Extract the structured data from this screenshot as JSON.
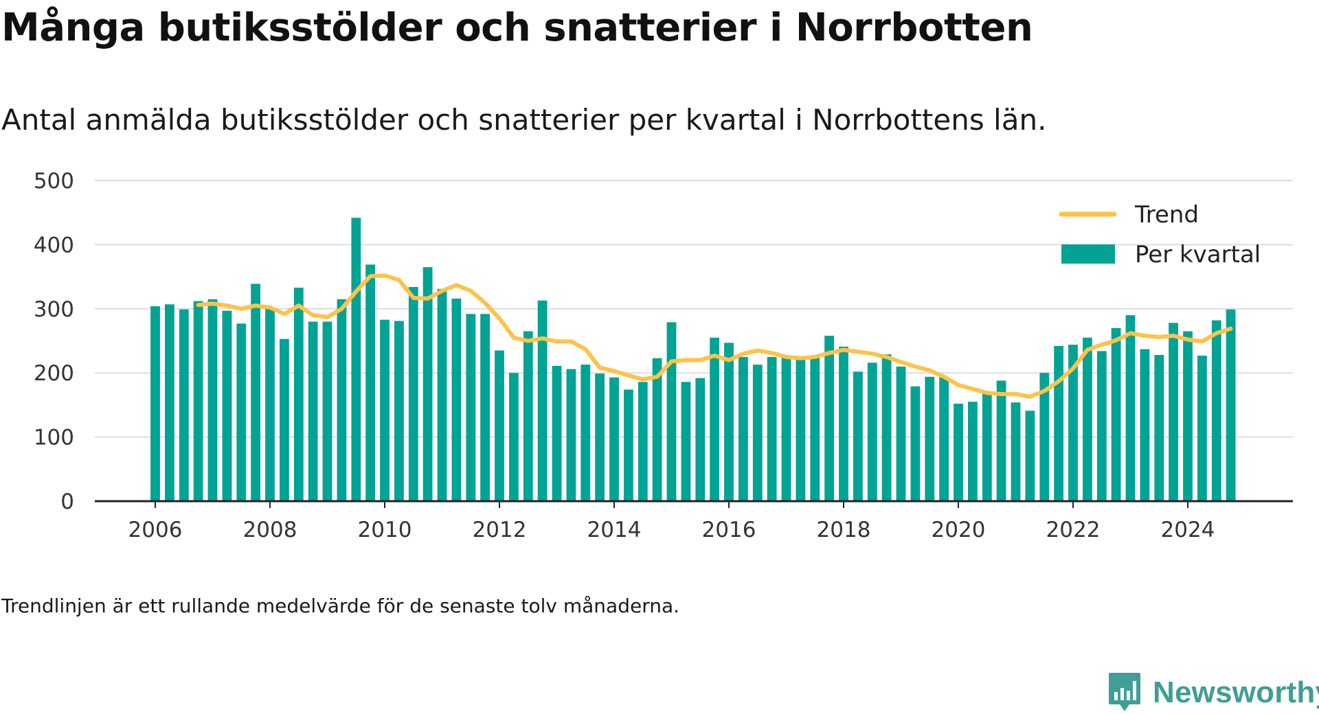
{
  "title": "Många butiksstölder och snatterier i Norrbotten",
  "subtitle": "Antal anmälda butiksstölder och snatterier per kvartal i Norrbottens län.",
  "footnote": "Trendlinjen är ett rullande medelvärde för de senaste tolv månaderna.",
  "brand": {
    "name": "Newsworthy",
    "icon": "newsworthy-bar-chart-logo-icon"
  },
  "colors": {
    "bars": "#00a394",
    "trend": "#ffc24a",
    "grid": "#dddddd",
    "axis": "#222222",
    "brand": "#3f9e96"
  },
  "chart_data": {
    "type": "bar",
    "title": "Många butiksstölder och snatterier i Norrbotten",
    "xlabel": "",
    "ylabel": "",
    "ylim": [
      0,
      500
    ],
    "yticks": [
      0,
      100,
      200,
      300,
      400,
      500
    ],
    "xticks": [
      "2006",
      "2008",
      "2010",
      "2012",
      "2014",
      "2016",
      "2018",
      "2020",
      "2022",
      "2024"
    ],
    "grid": true,
    "legend_position": "top-right",
    "categories": [
      "2006 Q1",
      "2006 Q2",
      "2006 Q3",
      "2006 Q4",
      "2007 Q1",
      "2007 Q2",
      "2007 Q3",
      "2007 Q4",
      "2008 Q1",
      "2008 Q2",
      "2008 Q3",
      "2008 Q4",
      "2009 Q1",
      "2009 Q2",
      "2009 Q3",
      "2009 Q4",
      "2010 Q1",
      "2010 Q2",
      "2010 Q3",
      "2010 Q4",
      "2011 Q1",
      "2011 Q2",
      "2011 Q3",
      "2011 Q4",
      "2012 Q1",
      "2012 Q2",
      "2012 Q3",
      "2012 Q4",
      "2013 Q1",
      "2013 Q2",
      "2013 Q3",
      "2013 Q4",
      "2014 Q1",
      "2014 Q2",
      "2014 Q3",
      "2014 Q4",
      "2015 Q1",
      "2015 Q2",
      "2015 Q3",
      "2015 Q4",
      "2016 Q1",
      "2016 Q2",
      "2016 Q3",
      "2016 Q4",
      "2017 Q1",
      "2017 Q2",
      "2017 Q3",
      "2017 Q4",
      "2018 Q1",
      "2018 Q2",
      "2018 Q3",
      "2018 Q4",
      "2019 Q1",
      "2019 Q2",
      "2019 Q3",
      "2019 Q4",
      "2020 Q1",
      "2020 Q2",
      "2020 Q3",
      "2020 Q4",
      "2021 Q1",
      "2021 Q2",
      "2021 Q3",
      "2021 Q4",
      "2022 Q1",
      "2022 Q2",
      "2022 Q3",
      "2022 Q4",
      "2023 Q1",
      "2023 Q2",
      "2023 Q3",
      "2023 Q4",
      "2024 Q1",
      "2024 Q2",
      "2024 Q3",
      "2024 Q4"
    ],
    "series": [
      {
        "name": "Per kvartal",
        "type": "bar",
        "values": [
          304,
          307,
          299,
          312,
          315,
          297,
          277,
          339,
          300,
          253,
          333,
          280,
          280,
          315,
          442,
          369,
          283,
          281,
          334,
          365,
          331,
          316,
          292,
          292,
          235,
          200,
          265,
          313,
          211,
          206,
          213,
          199,
          193,
          174,
          186,
          223,
          279,
          186,
          192,
          255,
          247,
          225,
          213,
          225,
          225,
          225,
          225,
          258,
          241,
          202,
          216,
          229,
          210,
          179,
          194,
          193,
          152,
          155,
          170,
          188,
          154,
          141,
          200,
          242,
          244,
          255,
          234,
          270,
          290,
          237,
          228,
          278,
          265,
          227,
          282,
          299
        ]
      },
      {
        "name": "Trend",
        "type": "line",
        "values": [
          null,
          null,
          null,
          306,
          308,
          305,
          300,
          305,
          302,
          292,
          305,
          290,
          287,
          300,
          327,
          351,
          352,
          345,
          317,
          316,
          328,
          337,
          328,
          309,
          285,
          255,
          250,
          254,
          249,
          249,
          237,
          208,
          203,
          196,
          190,
          194,
          218,
          220,
          220,
          227,
          220,
          230,
          235,
          231,
          225,
          223,
          225,
          231,
          236,
          233,
          230,
          225,
          217,
          210,
          204,
          194,
          181,
          175,
          169,
          167,
          167,
          163,
          172,
          187,
          207,
          236,
          244,
          251,
          262,
          258,
          256,
          258,
          252,
          249,
          262,
          269
        ]
      }
    ],
    "legend": [
      {
        "label": "Trend",
        "symbol": "line"
      },
      {
        "label": "Per kvartal",
        "symbol": "bar"
      }
    ]
  }
}
